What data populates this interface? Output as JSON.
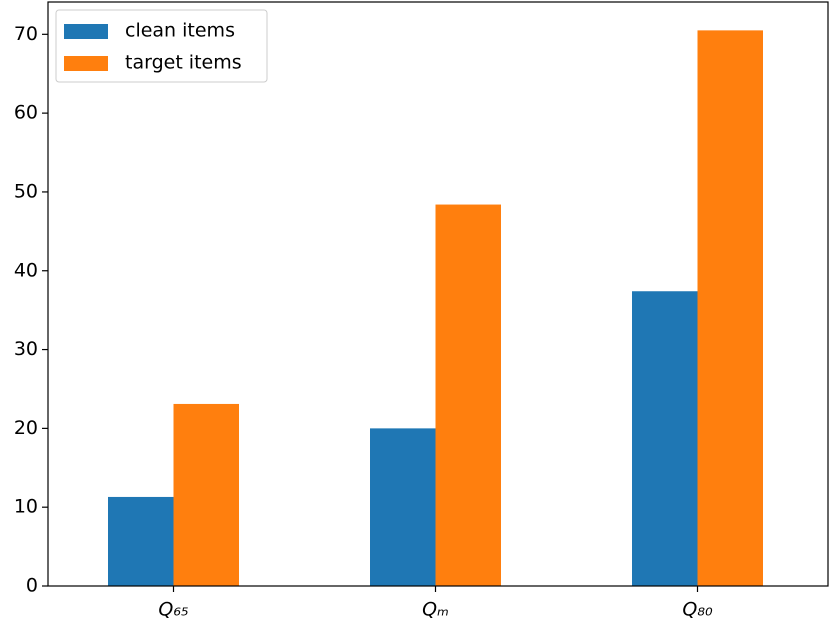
{
  "chart_data": {
    "type": "bar",
    "categories": [
      "Q₆₅",
      "Qₘ",
      "Q₈₀"
    ],
    "series": [
      {
        "name": "clean items",
        "color": "#1f77b4",
        "values": [
          11.3,
          20.0,
          37.4
        ]
      },
      {
        "name": "target items",
        "color": "#ff7f0e",
        "values": [
          23.1,
          48.4,
          70.5
        ]
      }
    ],
    "ylim": [
      0,
      74.1
    ],
    "yticks": [
      0,
      10,
      20,
      30,
      40,
      50,
      60,
      70
    ],
    "legend": "upper left"
  }
}
